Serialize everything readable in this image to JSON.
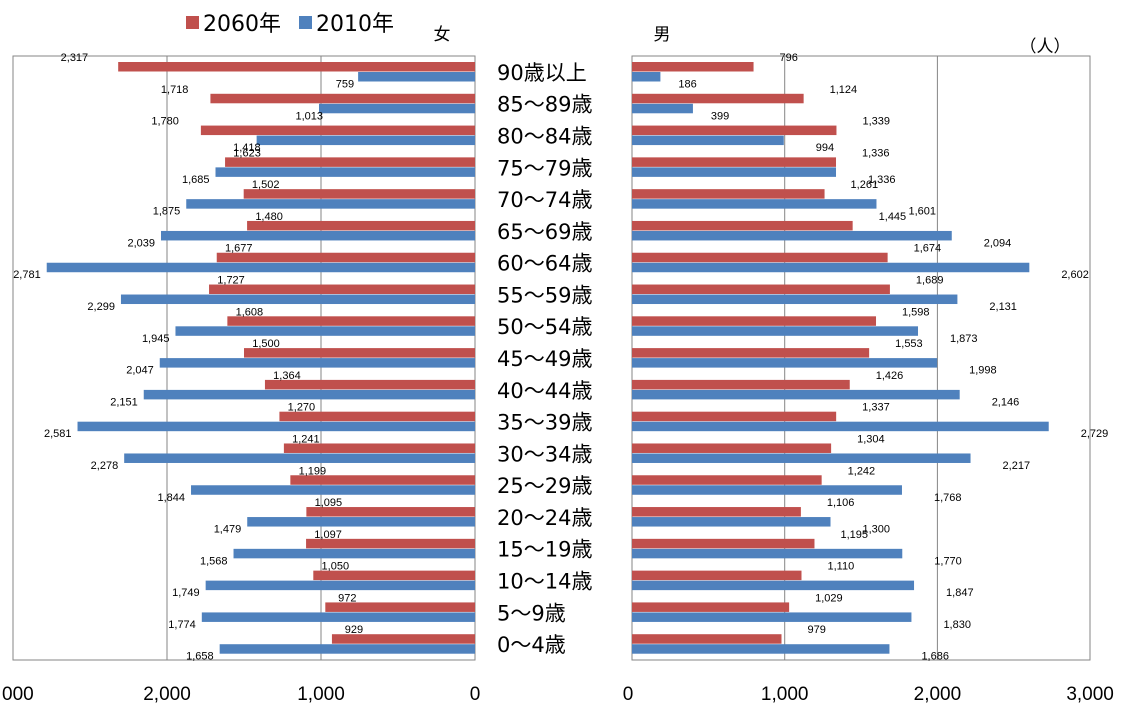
{
  "chart_data": {
    "type": "bar",
    "unit": "（人）",
    "legend": [
      {
        "name": "2060年",
        "color": "#C0504D"
      },
      {
        "name": "2010年",
        "color": "#4F81BD"
      }
    ],
    "categories": [
      "90歳以上",
      "85～89歳",
      "80～84歳",
      "75～79歳",
      "70～74歳",
      "65～69歳",
      "60～64歳",
      "55～59歳",
      "50～54歳",
      "45～49歳",
      "40～44歳",
      "35～39歳",
      "30～34歳",
      "25～29歳",
      "20～24歳",
      "15～19歳",
      "10～14歳",
      "5～9歳",
      "0～4歳"
    ],
    "panels": [
      {
        "label": "女",
        "direction": "left",
        "xlim": [
          0,
          3000
        ],
        "tick_labels": [
          "000",
          "2,000",
          "1,000",
          "0"
        ],
        "series": [
          {
            "name": "2060年",
            "color": "#C0504D",
            "values": [
              2317,
              1718,
              1780,
              1623,
              1502,
              1480,
              1677,
              1727,
              1608,
              1500,
              1364,
              1270,
              1241,
              1199,
              1095,
              1097,
              1050,
              972,
              929
            ]
          },
          {
            "name": "2010年",
            "color": "#4F81BD",
            "values": [
              759,
              1013,
              1418,
              1685,
              1875,
              2039,
              2781,
              2299,
              1945,
              2047,
              2151,
              2581,
              2278,
              1844,
              1479,
              1568,
              1749,
              1774,
              1658
            ]
          }
        ]
      },
      {
        "label": "男",
        "direction": "right",
        "xlim": [
          0,
          3000
        ],
        "tick_labels": [
          "0",
          "1,000",
          "2,000",
          "3,000"
        ],
        "series": [
          {
            "name": "2060年",
            "color": "#C0504D",
            "values": [
              796,
              1124,
              1339,
              1336,
              1261,
              1445,
              1674,
              1689,
              1598,
              1553,
              1426,
              1337,
              1304,
              1242,
              1106,
              1195,
              1110,
              1029,
              979
            ]
          },
          {
            "name": "2010年",
            "color": "#4F81BD",
            "values": [
              186,
              399,
              994,
              1336,
              1601,
              2094,
              2602,
              2131,
              1873,
              1998,
              2146,
              2729,
              2217,
              1768,
              1300,
              1770,
              1847,
              1830,
              1686
            ]
          }
        ]
      }
    ]
  }
}
